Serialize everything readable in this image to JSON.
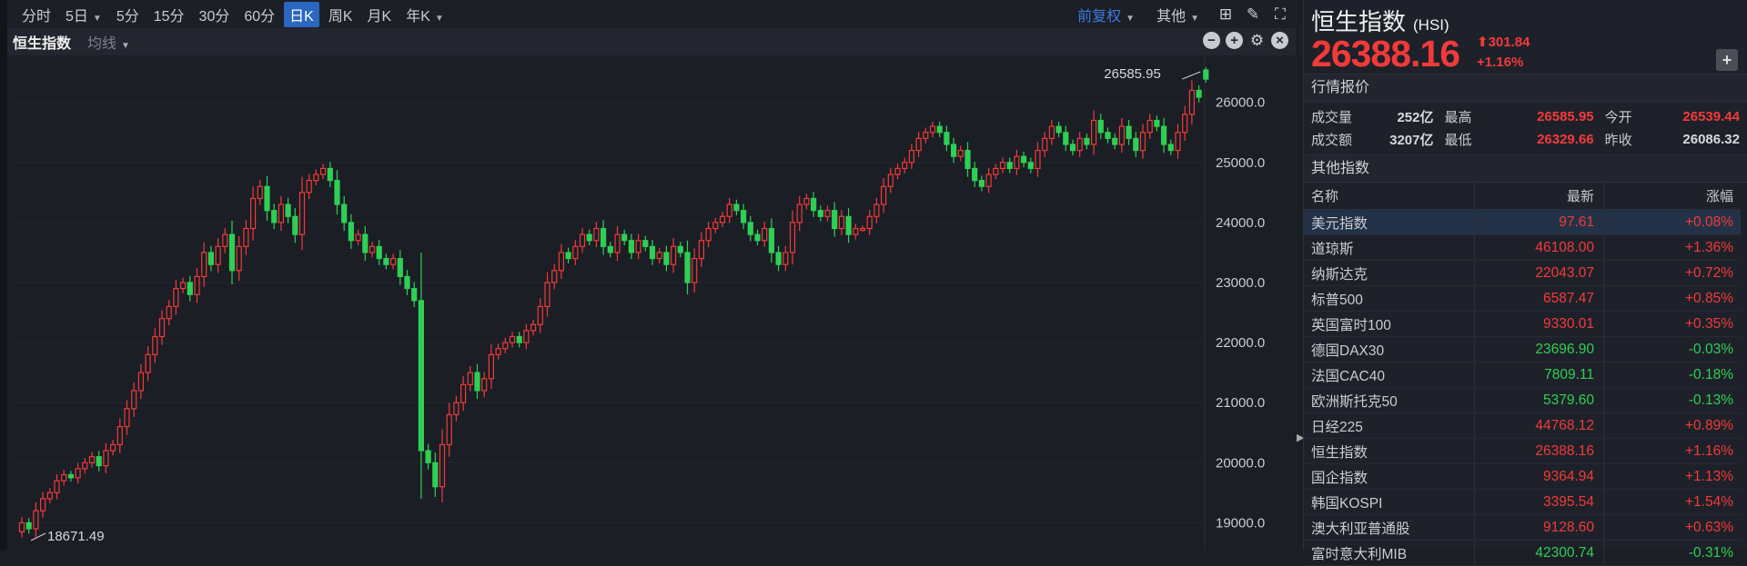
{
  "toolbar": {
    "periods": [
      {
        "label": "分时"
      },
      {
        "label": "5日",
        "caret": true
      },
      {
        "label": "5分"
      },
      {
        "label": "15分"
      },
      {
        "label": "30分"
      },
      {
        "label": "60分"
      },
      {
        "label": "日K",
        "active": true
      },
      {
        "label": "周K"
      },
      {
        "label": "月K"
      },
      {
        "label": "年K",
        "caret": true
      }
    ],
    "adjust": "前复权",
    "other": "其他",
    "icons": [
      "layout-grid-icon",
      "brush-icon",
      "fullscreen-icon"
    ]
  },
  "subbar": {
    "name": "恒生指数",
    "ma": "均线"
  },
  "chart": {
    "y_ticks": [
      26000.0,
      25000.0,
      24000.0,
      23000.0,
      22000.0,
      21000.0,
      20000.0,
      19000.0
    ],
    "y_tick_labels": [
      "26000.0",
      "25000.0",
      "24000.0",
      "23000.0",
      "22000.0",
      "21000.0",
      "20000.0",
      "19000.0"
    ],
    "high_label": "26585.95",
    "low_label": "18671.49",
    "up_color": "#f23a3a",
    "down_color": "#2fcf55",
    "closes": [
      19000,
      18900,
      19200,
      19400,
      19500,
      19700,
      19800,
      19750,
      19900,
      20000,
      20100,
      19950,
      20200,
      20300,
      20600,
      20900,
      21200,
      21500,
      21800,
      22100,
      22400,
      22600,
      22900,
      23000,
      22800,
      23100,
      23500,
      23300,
      23600,
      23800,
      23200,
      23600,
      23900,
      24400,
      24600,
      24200,
      24000,
      24300,
      24100,
      23800,
      24500,
      24700,
      24800,
      24900,
      24700,
      24300,
      24000,
      23700,
      23800,
      23500,
      23600,
      23400,
      23300,
      23400,
      23100,
      22900,
      22700,
      20200,
      20000,
      19600,
      20300,
      20800,
      21000,
      21300,
      21500,
      21200,
      21400,
      21800,
      21900,
      22000,
      22100,
      22000,
      22200,
      22300,
      22600,
      23000,
      23200,
      23500,
      23400,
      23600,
      23800,
      23700,
      23900,
      23600,
      23500,
      23800,
      23700,
      23500,
      23700,
      23600,
      23400,
      23500,
      23300,
      23600,
      23500,
      23000,
      23400,
      23700,
      23900,
      24000,
      24100,
      24300,
      24200,
      24000,
      23800,
      23700,
      23900,
      23500,
      23300,
      23500,
      24000,
      24300,
      24400,
      24200,
      24100,
      24200,
      23900,
      24100,
      23800,
      23900,
      23900,
      24100,
      24300,
      24600,
      24800,
      24900,
      25000,
      25200,
      25400,
      25500,
      25600,
      25500,
      25300,
      25100,
      25200,
      24900,
      24700,
      24600,
      24800,
      24900,
      25000,
      24900,
      25100,
      25000,
      24900,
      25200,
      25400,
      25600,
      25500,
      25300,
      25200,
      25400,
      25300,
      25700,
      25500,
      25400,
      25300,
      25600,
      25400,
      25200,
      25500,
      25700,
      25600,
      25300,
      25200,
      25500,
      25800,
      26200,
      26086.32
    ],
    "last": {
      "open": 26539.44,
      "high": 26585.95,
      "low": 26329.66,
      "close": 26388.16
    }
  },
  "quote": {
    "name": "恒生指数",
    "code": "(HSI)",
    "price": "26388.16",
    "change": "301.84",
    "pct": "+1.16%",
    "section": "行情报价",
    "rows": [
      [
        {
          "l": "成交量",
          "v": "252亿"
        },
        {
          "l": "最高",
          "v": "26585.95"
        },
        {
          "l": "今开",
          "v": "26539.44"
        }
      ],
      [
        {
          "l": "成交额",
          "v": "3207亿"
        },
        {
          "l": "最低",
          "v": "26329.66"
        },
        {
          "l": "昨收",
          "v": "26086.32"
        }
      ]
    ]
  },
  "others": {
    "section": "其他指数",
    "headers": [
      "名称",
      "最新",
      "涨幅"
    ],
    "rows": [
      {
        "name": "美元指数",
        "last": "97.61",
        "pct": "+0.08%",
        "dir": "up"
      },
      {
        "name": "道琼斯",
        "last": "46108.00",
        "pct": "+1.36%",
        "dir": "up"
      },
      {
        "name": "纳斯达克",
        "last": "22043.07",
        "pct": "+0.72%",
        "dir": "up"
      },
      {
        "name": "标普500",
        "last": "6587.47",
        "pct": "+0.85%",
        "dir": "up"
      },
      {
        "name": "英国富时100",
        "last": "9330.01",
        "pct": "+0.35%",
        "dir": "up"
      },
      {
        "name": "德国DAX30",
        "last": "23696.90",
        "pct": "-0.03%",
        "dir": "down"
      },
      {
        "name": "法国CAC40",
        "last": "7809.11",
        "pct": "-0.18%",
        "dir": "down"
      },
      {
        "name": "欧洲斯托克50",
        "last": "5379.60",
        "pct": "-0.13%",
        "dir": "down"
      },
      {
        "name": "日经225",
        "last": "44768.12",
        "pct": "+0.89%",
        "dir": "up"
      },
      {
        "name": "恒生指数",
        "last": "26388.16",
        "pct": "+1.16%",
        "dir": "up"
      },
      {
        "name": "国企指数",
        "last": "9364.94",
        "pct": "+1.13%",
        "dir": "up"
      },
      {
        "name": "韩国KOSPI",
        "last": "3395.54",
        "pct": "+1.54%",
        "dir": "up"
      },
      {
        "name": "澳大利亚普通股",
        "last": "9128.60",
        "pct": "+0.63%",
        "dir": "up"
      },
      {
        "name": "富时意大利MIB",
        "last": "42300.74",
        "pct": "-0.31%",
        "dir": "down"
      }
    ]
  }
}
